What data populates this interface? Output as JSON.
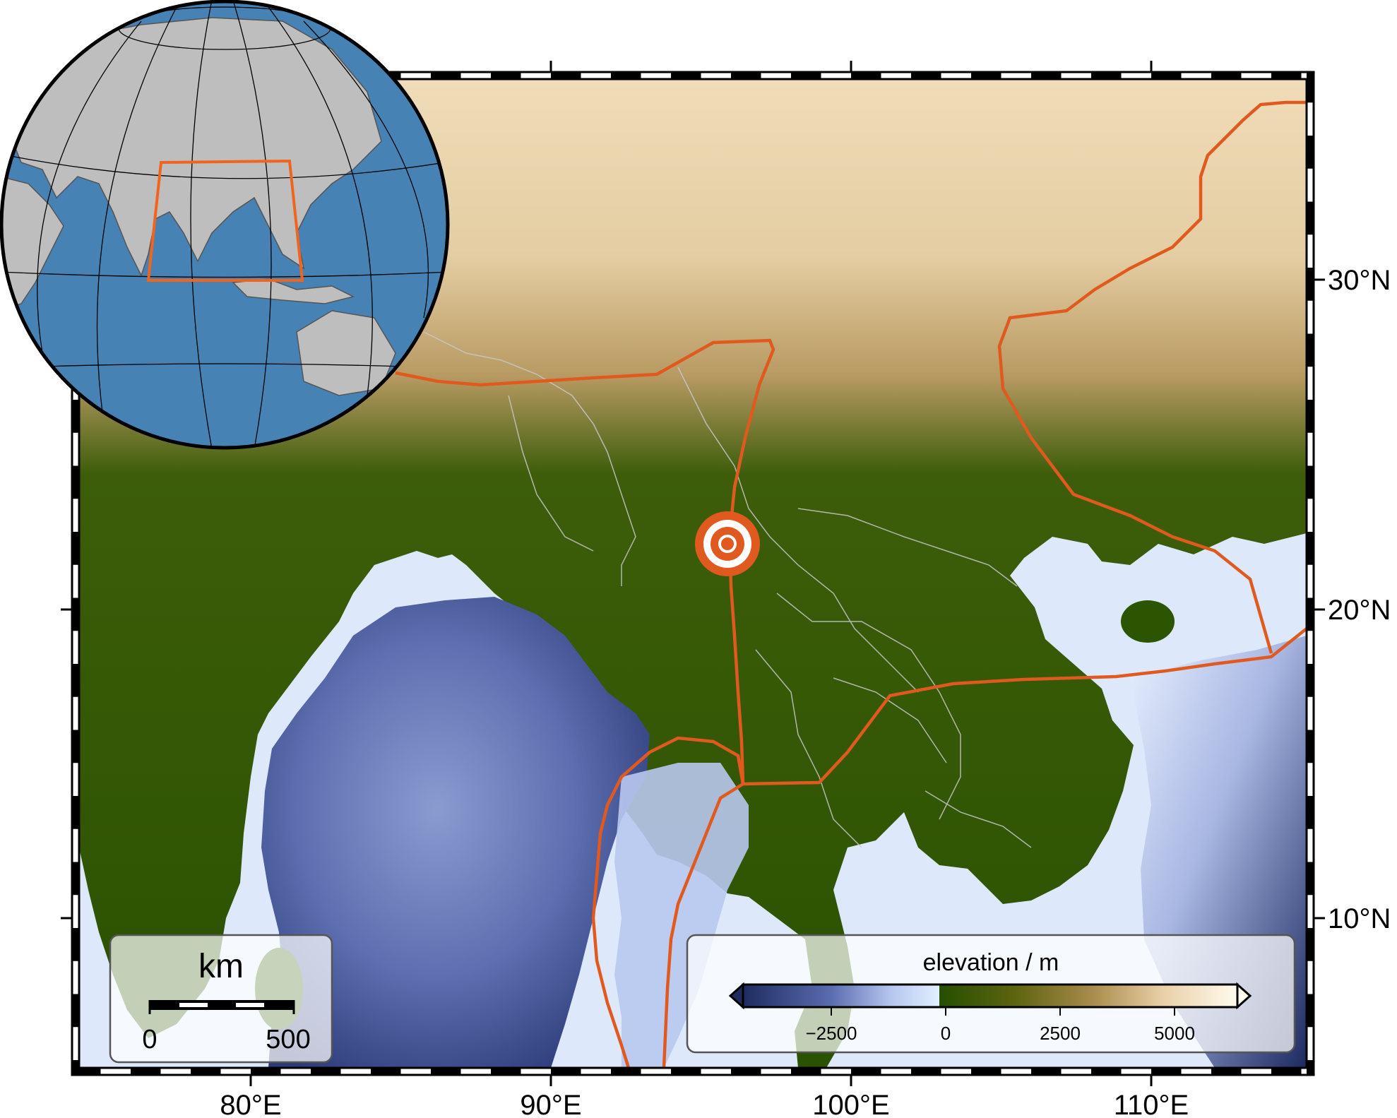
{
  "map": {
    "longitude_labels": [
      "80°E",
      "90°E",
      "100°E",
      "110°E"
    ],
    "latitude_labels": [
      "30°N",
      "20°N",
      "10°N"
    ],
    "lon_range": [
      75,
      115.5
    ],
    "lat_range": [
      4.5,
      33.5
    ],
    "plate_boundary_color": "#e05a1f",
    "epicenter": {
      "lon": 96,
      "lat": 22,
      "icon": "target-epicenter-icon",
      "color": "#e05a1f"
    }
  },
  "scale_bar": {
    "unit": "km",
    "start_label": "0",
    "end_label": "500"
  },
  "colorbar": {
    "title": "elevation / m",
    "tick_labels": [
      "−2500",
      "0",
      "2500",
      "5000"
    ],
    "colors": [
      "#1e2c60",
      "#5a6db0",
      "#b6c7ef",
      "#e2efff",
      "#254f00",
      "#6a6a14",
      "#a58948",
      "#ead0a8",
      "#fffbee"
    ]
  },
  "inset_globe": {
    "ocean_color": "#4682b4",
    "land_color": "#bebebe",
    "region_box_color": "#f0641e"
  }
}
